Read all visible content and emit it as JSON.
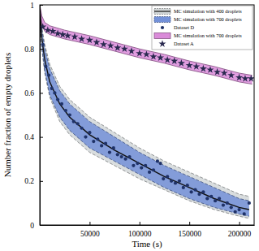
{
  "chart_data": {
    "type": "line",
    "x_label": "Time (s)",
    "y_label": "Number fraction of empty droplets",
    "xlim": [
      0,
      215000
    ],
    "ylim": [
      0,
      1
    ],
    "xticks": [
      50000,
      100000,
      150000,
      200000
    ],
    "yticks": [
      0,
      0.2,
      0.4,
      0.6,
      0.8,
      1
    ],
    "grid": false,
    "legend": "upper right",
    "series": [
      {
        "name": "MC simulation with 400 droplets",
        "type": "band",
        "color": "#d2d7d8",
        "line_style": "dashed",
        "x": [
          0,
          2000,
          5000,
          10000,
          20000,
          30000,
          50000,
          75000,
          100000,
          125000,
          150000,
          175000,
          200000,
          210000
        ],
        "values": [
          1,
          0.85,
          0.75,
          0.65,
          0.55,
          0.49,
          0.41,
          0.34,
          0.28,
          0.22,
          0.17,
          0.12,
          0.08,
          0.07
        ],
        "upper": [
          1,
          0.9,
          0.82,
          0.73,
          0.63,
          0.57,
          0.49,
          0.42,
          0.35,
          0.29,
          0.24,
          0.19,
          0.14,
          0.13
        ],
        "lower": [
          1,
          0.8,
          0.69,
          0.58,
          0.47,
          0.41,
          0.33,
          0.27,
          0.21,
          0.16,
          0.11,
          0.07,
          0.04,
          0.03
        ]
      },
      {
        "name": "MC simulation with 700 droplets",
        "type": "band",
        "color": "#7391d8",
        "line_style": "dashed",
        "x": [
          0,
          2000,
          5000,
          10000,
          20000,
          30000,
          50000,
          75000,
          100000,
          125000,
          150000,
          175000,
          200000,
          210000
        ],
        "upper": [
          1,
          0.89,
          0.8,
          0.71,
          0.61,
          0.55,
          0.47,
          0.4,
          0.33,
          0.27,
          0.22,
          0.17,
          0.12,
          0.11
        ],
        "lower": [
          1,
          0.81,
          0.7,
          0.59,
          0.49,
          0.43,
          0.35,
          0.29,
          0.23,
          0.17,
          0.12,
          0.08,
          0.05,
          0.04
        ]
      },
      {
        "name": "Dataset D",
        "type": "scatter",
        "marker": "circle",
        "color": "#1f3268",
        "x": [
          3000,
          6000,
          9000,
          12000,
          15000,
          18000,
          22000,
          26000,
          30000,
          34000,
          38000,
          42000,
          46000,
          50000,
          54000,
          58000,
          62000,
          66000,
          70000,
          74000,
          78000,
          82000,
          86000,
          90000,
          94000,
          98000,
          102000,
          106000,
          110000,
          114000,
          118000,
          121000,
          124000,
          128000,
          132000,
          136000,
          140000,
          144000,
          148000,
          152000,
          156000,
          160000,
          164000,
          168000,
          172000,
          176000,
          180000,
          184000,
          188000,
          192000,
          196000,
          200000,
          205000,
          210000
        ],
        "values": [
          0.82,
          0.72,
          0.68,
          0.62,
          0.6,
          0.57,
          0.55,
          0.52,
          0.5,
          0.47,
          0.46,
          0.44,
          0.4,
          0.42,
          0.38,
          0.39,
          0.36,
          0.37,
          0.33,
          0.35,
          0.32,
          0.31,
          0.3,
          0.31,
          0.27,
          0.28,
          0.26,
          0.27,
          0.24,
          0.25,
          0.29,
          0.28,
          0.21,
          0.22,
          0.2,
          0.19,
          0.2,
          0.17,
          0.18,
          0.15,
          0.16,
          0.14,
          0.15,
          0.12,
          0.13,
          0.11,
          0.12,
          0.09,
          0.1,
          0.08,
          0.06,
          0.07,
          0.05,
          0.1
        ]
      },
      {
        "name": "MC simulation with 700 droplets",
        "type": "band",
        "color": "#da8bd9",
        "line_style": "solid",
        "x": [
          0,
          2000,
          5000,
          10000,
          25000,
          50000,
          75000,
          100000,
          125000,
          150000,
          175000,
          200000,
          213000
        ],
        "upper": [
          1,
          0.95,
          0.92,
          0.905,
          0.885,
          0.86,
          0.83,
          0.8,
          0.775,
          0.745,
          0.72,
          0.69,
          0.68
        ],
        "lower": [
          0.98,
          0.91,
          0.88,
          0.865,
          0.845,
          0.82,
          0.79,
          0.76,
          0.735,
          0.705,
          0.68,
          0.65,
          0.64
        ]
      },
      {
        "name": "Dataset A",
        "type": "scatter",
        "marker": "star",
        "color": "#2a2a50",
        "x": [
          3000,
          8000,
          13000,
          18000,
          23000,
          28000,
          35000,
          42000,
          50000,
          57000,
          64000,
          71000,
          78000,
          85000,
          92000,
          100000,
          107000,
          114000,
          121000,
          128000,
          135000,
          142000,
          150000,
          157000,
          164000,
          171000,
          178000,
          185000,
          192000,
          200000,
          206000,
          212000
        ],
        "values": [
          0.9,
          0.885,
          0.88,
          0.87,
          0.865,
          0.86,
          0.855,
          0.845,
          0.84,
          0.83,
          0.82,
          0.815,
          0.805,
          0.8,
          0.79,
          0.78,
          0.775,
          0.765,
          0.76,
          0.75,
          0.745,
          0.735,
          0.725,
          0.72,
          0.71,
          0.705,
          0.695,
          0.69,
          0.68,
          0.67,
          0.665,
          0.665
        ]
      }
    ]
  }
}
